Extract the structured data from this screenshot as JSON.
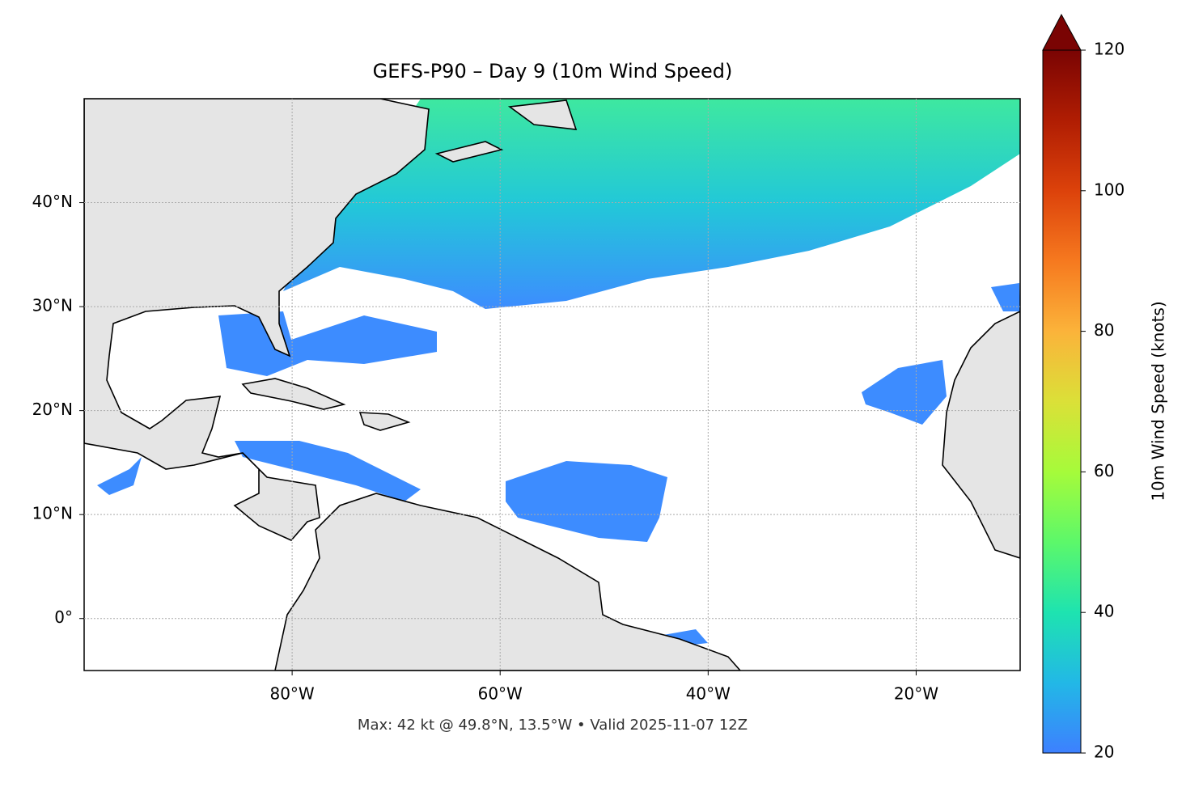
{
  "map": {
    "title": "GEFS-P90 – Day 9 (10m Wind Speed)",
    "footer": "Max: 42 kt @ 49.8°N, 13.5°W • Valid 2025-11-07 12Z",
    "xlim": [
      -100,
      -10
    ],
    "ylim": [
      -5,
      50
    ],
    "xticks": [
      {
        "value": -80,
        "label": "80°W"
      },
      {
        "value": -60,
        "label": "60°W"
      },
      {
        "value": -40,
        "label": "40°W"
      },
      {
        "value": -20,
        "label": "20°W"
      }
    ],
    "yticks": [
      {
        "value": 0,
        "label": "0°"
      },
      {
        "value": 10,
        "label": "10°N"
      },
      {
        "value": 20,
        "label": "20°N"
      },
      {
        "value": 30,
        "label": "30°N"
      },
      {
        "value": 40,
        "label": "40°N"
      }
    ],
    "grid": true,
    "colorbar": {
      "label": "10m Wind Speed (knots)",
      "lim": [
        20,
        120
      ],
      "ticks": [
        20,
        40,
        60,
        80,
        100,
        120
      ],
      "extend": "max"
    }
  }
}
